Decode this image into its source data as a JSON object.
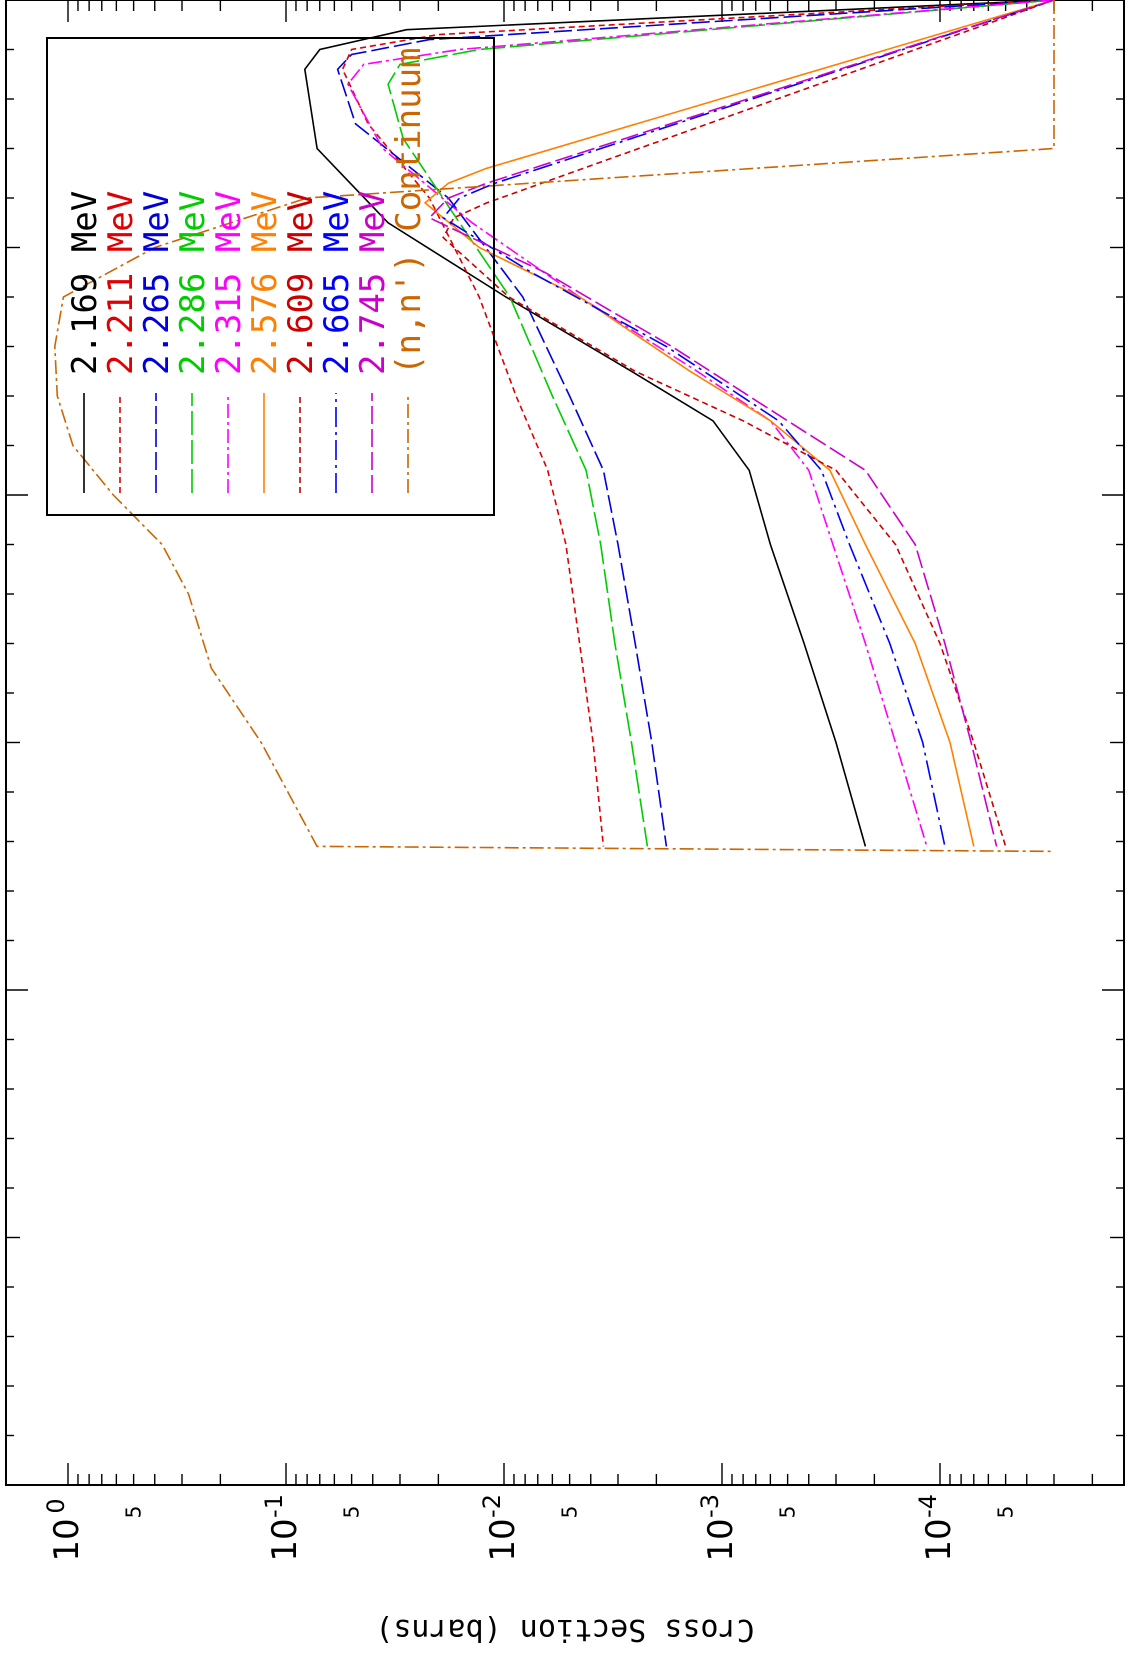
{
  "chart_data": {
    "type": "line",
    "orientation": "rotated-90-ccw",
    "ylabel": "Cross Section (barns)",
    "xlabel": "",
    "y_scale": "log",
    "ylim": [
      3e-05,
      1.6
    ],
    "xlim": [
      0,
      3
    ],
    "x_major_ticks": [
      1,
      2
    ],
    "y_tick_labels": [
      {
        "value": 1,
        "label": "10",
        "exp": "0"
      },
      {
        "value": 0.1,
        "label": "10",
        "exp": "-1"
      },
      {
        "value": 0.01,
        "label": "10",
        "exp": "-2"
      },
      {
        "value": 0.001,
        "label": "10",
        "exp": "-3"
      },
      {
        "value": 0.0001,
        "label": "10",
        "exp": "-4"
      }
    ],
    "y_minor_labels": [
      {
        "value": 0.5,
        "label": "5"
      },
      {
        "value": 0.05,
        "label": "5"
      },
      {
        "value": 0.005,
        "label": "5"
      },
      {
        "value": 0.0005,
        "label": "5"
      },
      {
        "value": 5e-05,
        "label": "5"
      }
    ],
    "grid": false,
    "legend_position": "top-right",
    "series": [
      {
        "name": "2.169 MeV",
        "color": "#000000",
        "dash": "solid",
        "x": [
          0.0,
          0.06,
          0.1,
          0.14,
          0.3,
          0.45,
          0.6,
          0.75,
          0.85,
          0.95,
          1.1,
          1.3,
          1.5,
          1.71
        ],
        "y": [
          3e-05,
          0.028,
          0.07,
          0.082,
          0.072,
          0.034,
          0.0098,
          0.0026,
          0.0011,
          0.00075,
          0.0006,
          0.00042,
          0.0003,
          0.00022
        ]
      },
      {
        "name": "2.211 MeV",
        "color": "#e00000",
        "dash": "short",
        "x": [
          0.0,
          0.07,
          0.1,
          0.14,
          0.25,
          0.4,
          0.6,
          0.8,
          0.95,
          1.1,
          1.3,
          1.5,
          1.71
        ],
        "y": [
          3e-05,
          0.02,
          0.05,
          0.055,
          0.042,
          0.022,
          0.013,
          0.0088,
          0.0063,
          0.0052,
          0.0045,
          0.0039,
          0.0035
        ]
      },
      {
        "name": "2.265 MeV",
        "color": "#0000dd",
        "dash": "longdash",
        "x": [
          0.0,
          0.08,
          0.11,
          0.14,
          0.25,
          0.4,
          0.6,
          0.8,
          0.95,
          1.1,
          1.3,
          1.5,
          1.71
        ],
        "y": [
          3e-05,
          0.022,
          0.05,
          0.058,
          0.048,
          0.018,
          0.0082,
          0.005,
          0.0035,
          0.003,
          0.0025,
          0.0021,
          0.0018
        ]
      },
      {
        "name": "2.286 MeV",
        "color": "#00cc00",
        "dash": "longdash2",
        "x": [
          0.0,
          0.1,
          0.13,
          0.17,
          0.28,
          0.45,
          0.6,
          0.8,
          0.95,
          1.1,
          1.3,
          1.5,
          1.71
        ],
        "y": [
          3e-05,
          0.013,
          0.03,
          0.034,
          0.029,
          0.016,
          0.0094,
          0.006,
          0.0042,
          0.0036,
          0.0031,
          0.0026,
          0.0022
        ]
      },
      {
        "name": "2.315 MeV",
        "color": "#ff00ff",
        "dash": "dashdot",
        "x": [
          0.0,
          0.1,
          0.13,
          0.17,
          0.3,
          0.45,
          0.6,
          0.75,
          0.85,
          0.95,
          1.1,
          1.3,
          1.5,
          1.71
        ],
        "y": [
          3e-05,
          0.016,
          0.044,
          0.052,
          0.036,
          0.014,
          0.0045,
          0.0013,
          0.0006,
          0.0004,
          0.00031,
          0.00022,
          0.00016,
          0.000115
        ]
      },
      {
        "name": "2.576 MeV",
        "color": "#ff8000",
        "dash": "solid",
        "x": [
          0.0,
          0.34,
          0.37,
          0.41,
          0.5,
          0.6,
          0.75,
          0.85,
          0.95,
          1.1,
          1.3,
          1.5,
          1.71
        ],
        "y": [
          3e-05,
          0.012,
          0.018,
          0.023,
          0.013,
          0.0045,
          0.0014,
          0.0006,
          0.00032,
          0.00022,
          0.00013,
          9e-05,
          7e-05
        ]
      },
      {
        "name": "2.609 MeV",
        "color": "#cc0000",
        "dash": "short",
        "x": [
          0.0,
          0.41,
          0.44,
          0.48,
          0.6,
          0.75,
          0.85,
          0.95,
          1.1,
          1.3,
          1.5,
          1.71
        ],
        "y": [
          3e-05,
          0.012,
          0.017,
          0.019,
          0.0095,
          0.0025,
          0.0008,
          0.0003,
          0.00016,
          0.0001,
          7e-05,
          5e-05
        ]
      },
      {
        "name": "2.665 MeV",
        "color": "#0000ff",
        "dash": "longdashdot",
        "x": [
          0.0,
          0.37,
          0.4,
          0.44,
          0.55,
          0.7,
          0.85,
          0.95,
          1.1,
          1.3,
          1.5,
          1.71
        ],
        "y": [
          3e-05,
          0.011,
          0.016,
          0.019,
          0.0075,
          0.0018,
          0.00055,
          0.00035,
          0.00026,
          0.00017,
          0.00012,
          9.5e-05
        ]
      },
      {
        "name": "2.745 MeV",
        "color": "#cc00cc",
        "dash": "longdash",
        "x": [
          0.0,
          0.37,
          0.4,
          0.44,
          0.55,
          0.7,
          0.85,
          0.95,
          1.1,
          1.3,
          1.5,
          1.71
        ],
        "y": [
          3e-05,
          0.012,
          0.018,
          0.022,
          0.0065,
          0.0017,
          0.0005,
          0.00022,
          0.00013,
          9.5e-05,
          7.2e-05,
          5.5e-05
        ]
      },
      {
        "name": "(n,n') Continuum",
        "color": "#cc6600",
        "dash": "dashdot",
        "x": [
          0.0,
          0.3,
          0.4,
          0.5,
          0.6,
          0.7,
          0.8,
          0.9,
          1.0,
          1.1,
          1.2,
          1.35,
          1.5,
          1.71,
          1.72
        ],
        "y": [
          3e-05,
          3e-05,
          0.08,
          0.4,
          1.05,
          1.15,
          1.12,
          0.95,
          0.62,
          0.37,
          0.28,
          0.22,
          0.13,
          0.072,
          3e-05
        ]
      }
    ]
  }
}
